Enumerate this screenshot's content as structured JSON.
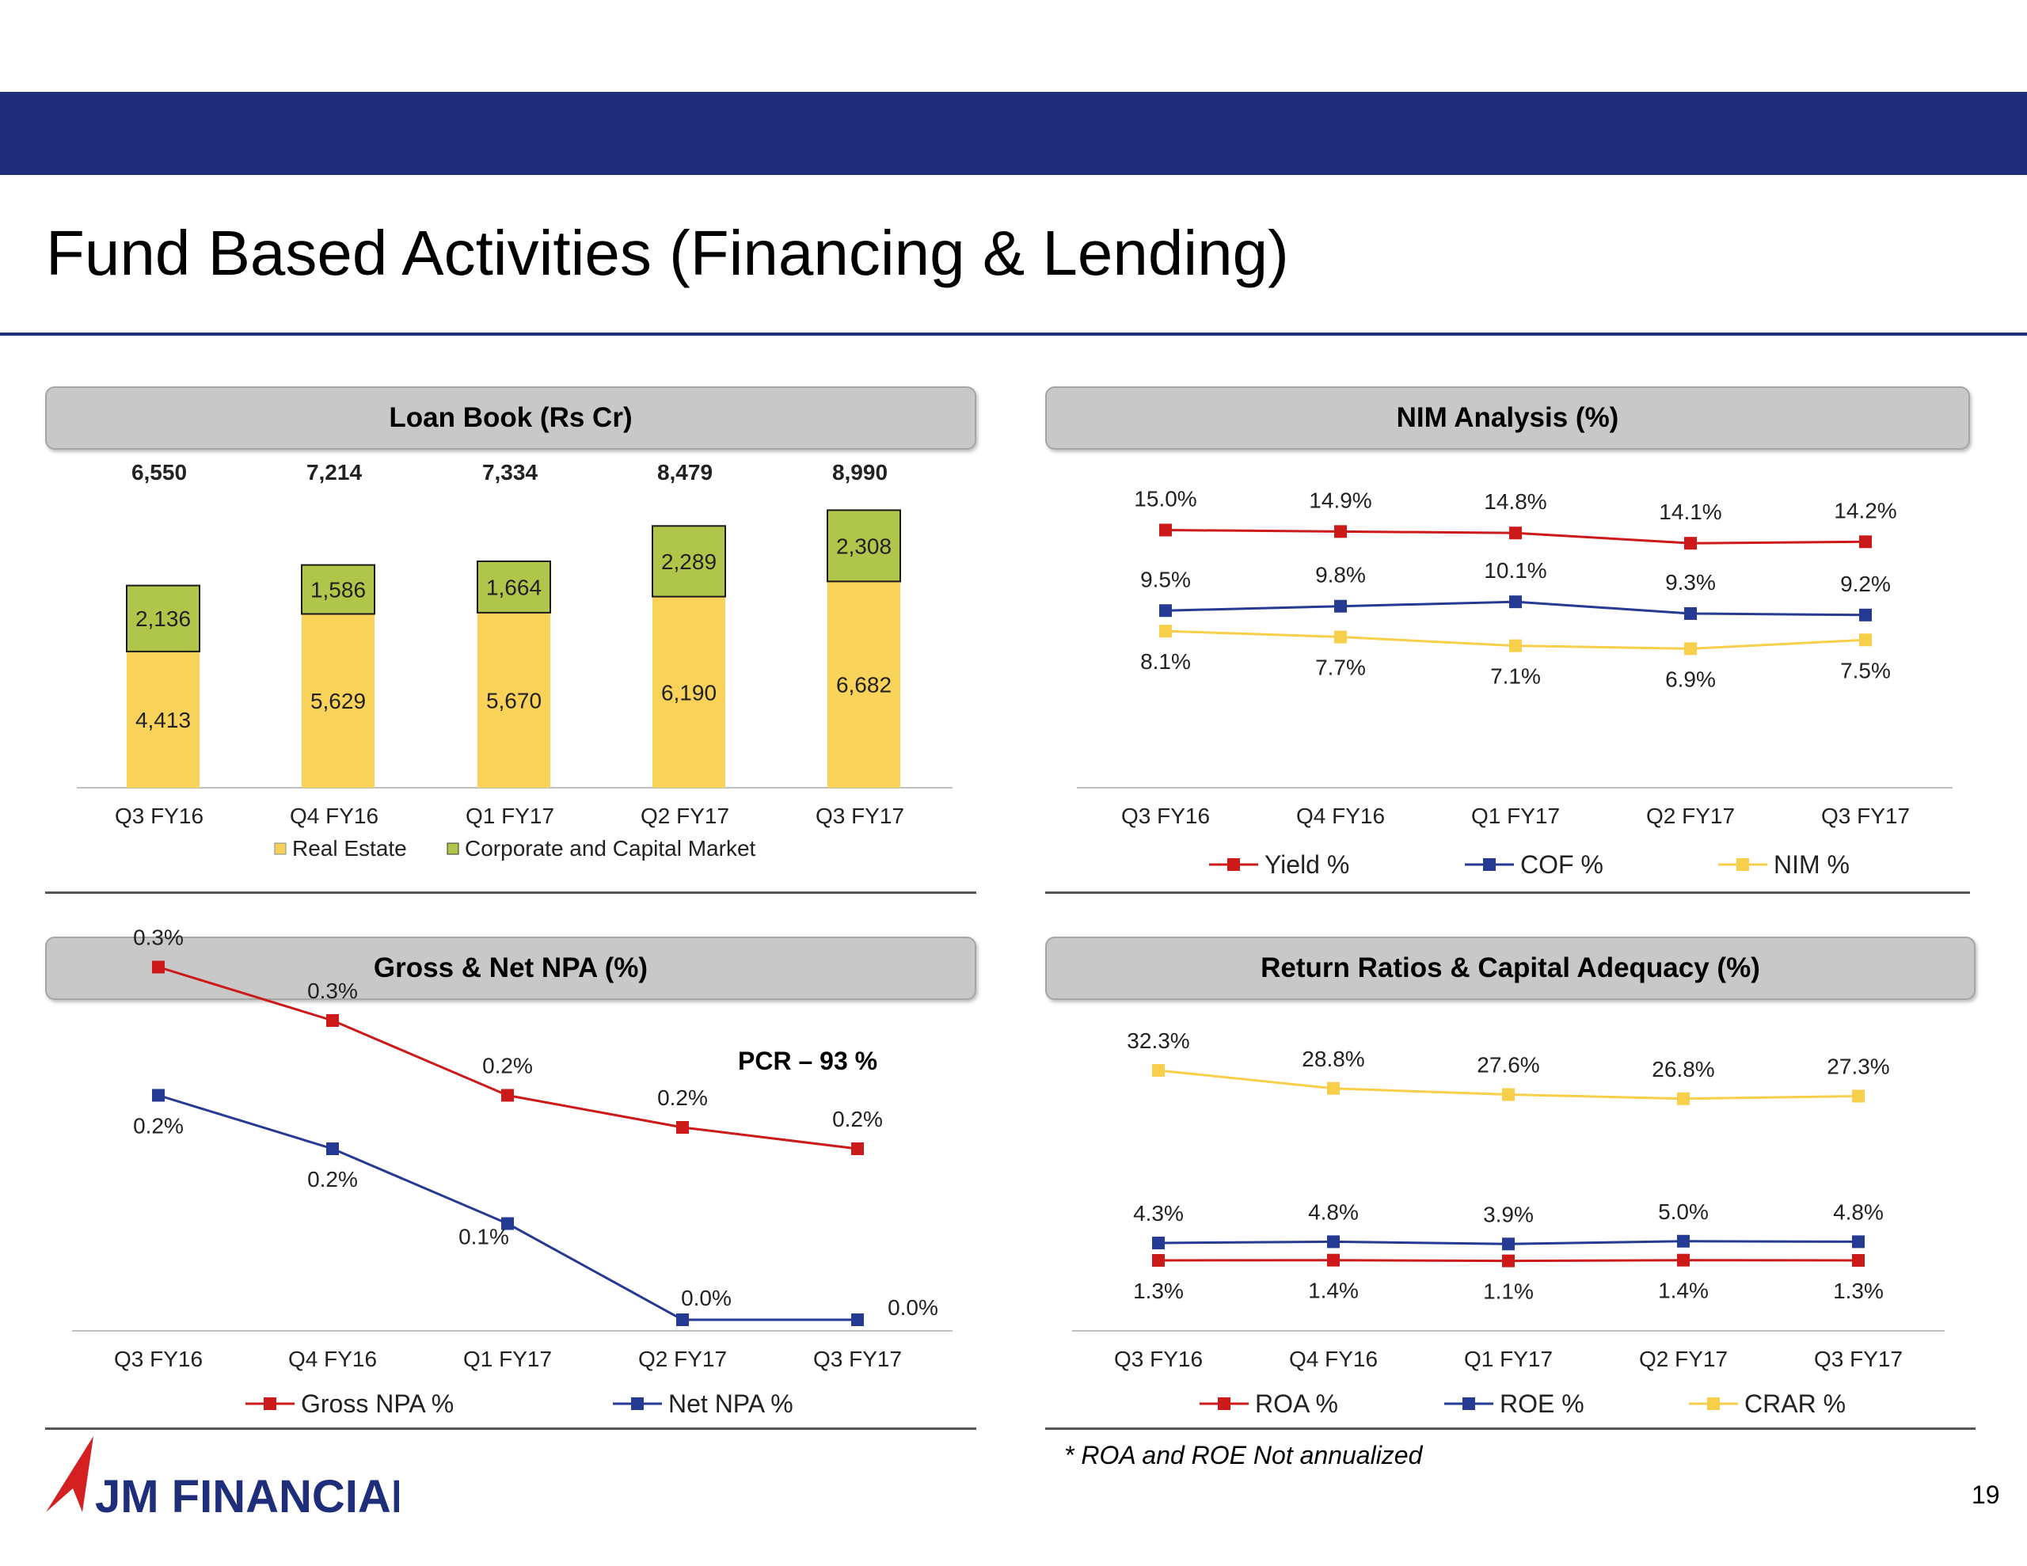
{
  "page": {
    "title": "Fund Based Activities (Financing & Lending)",
    "page_number": "19",
    "footnote": "* ROA and ROE Not annualized",
    "logo_text": "JM FINANCIAL"
  },
  "colors": {
    "navy": "#1f2e7a",
    "red": "#cc1a1a",
    "blue": "#253a93",
    "yellow": "#f7cf4a",
    "bar_yellow": "#f9d25a",
    "bar_green": "#b0c64a"
  },
  "panels": {
    "loan_book": {
      "title": "Loan Book (Rs Cr)"
    },
    "nim": {
      "title": "NIM Analysis (%)"
    },
    "npa": {
      "title": "Gross & Net NPA (%)",
      "note": "PCR – 93 %"
    },
    "returns": {
      "title": "Return Ratios & Capital Adequacy (%)"
    }
  },
  "chart_data": [
    {
      "type": "bar",
      "stacked": true,
      "title": "Loan Book (Rs Cr)",
      "categories": [
        "Q3 FY16",
        "Q4 FY16",
        "Q1 FY17",
        "Q2 FY17",
        "Q3 FY17"
      ],
      "series": [
        {
          "name": "Real Estate",
          "values": [
            4413,
            5629,
            5670,
            6190,
            6682
          ],
          "labels": [
            "4,413",
            "5,629",
            "5,670",
            "6,190",
            "6,682"
          ],
          "color": "#f9d25a"
        },
        {
          "name": "Corporate and Capital Market",
          "values": [
            2136,
            1586,
            1664,
            2289,
            2308
          ],
          "labels": [
            "2,136",
            "1,586",
            "1,664",
            "2,289",
            "2,308"
          ],
          "color": "#b0c64a"
        }
      ],
      "totals": [
        "6,550",
        "7,214",
        "7,334",
        "8,479",
        "8,990"
      ],
      "legend": "bottom",
      "grid": false
    },
    {
      "type": "line",
      "title": "NIM Analysis (%)",
      "categories": [
        "Q3 FY16",
        "Q4 FY16",
        "Q1 FY17",
        "Q2 FY17",
        "Q3 FY17"
      ],
      "series": [
        {
          "name": "Yield %",
          "values": [
            15.0,
            14.9,
            14.8,
            14.1,
            14.2
          ],
          "labels": [
            "15.0%",
            "14.9%",
            "14.8%",
            "14.1%",
            "14.2%"
          ],
          "color": "#cc1a1a"
        },
        {
          "name": "COF %",
          "values": [
            9.5,
            9.8,
            10.1,
            9.3,
            9.2
          ],
          "labels": [
            "9.5%",
            "9.8%",
            "10.1%",
            "9.3%",
            "9.2%"
          ],
          "color": "#253a93"
        },
        {
          "name": "NIM %",
          "values": [
            8.1,
            7.7,
            7.1,
            6.9,
            7.5
          ],
          "labels": [
            "8.1%",
            "7.7%",
            "7.1%",
            "6.9%",
            "7.5%"
          ],
          "color": "#f7cf4a"
        }
      ],
      "legend": "bottom",
      "grid": false
    },
    {
      "type": "line",
      "title": "Gross & Net NPA (%)",
      "categories": [
        "Q3 FY16",
        "Q4 FY16",
        "Q1 FY17",
        "Q2 FY17",
        "Q3 FY17"
      ],
      "series": [
        {
          "name": "Gross NPA %",
          "values": [
            0.33,
            0.28,
            0.21,
            0.18,
            0.16
          ],
          "labels": [
            "0.3%",
            "0.3%",
            "0.2%",
            "0.2%",
            "0.2%"
          ],
          "color": "#cc1a1a"
        },
        {
          "name": "Net NPA %",
          "values": [
            0.21,
            0.16,
            0.09,
            0.0,
            0.0
          ],
          "labels": [
            "0.2%",
            "0.2%",
            "0.1%",
            "0.0%",
            "0.0%"
          ],
          "color": "#253a93"
        }
      ],
      "annotation": "PCR – 93 %",
      "legend": "bottom",
      "grid": false
    },
    {
      "type": "line",
      "title": "Return Ratios & Capital Adequacy (%)",
      "categories": [
        "Q3 FY16",
        "Q4 FY16",
        "Q1 FY17",
        "Q2 FY17",
        "Q3 FY17"
      ],
      "series": [
        {
          "name": "ROA %",
          "values": [
            1.3,
            1.4,
            1.1,
            1.4,
            1.3
          ],
          "labels": [
            "1.3%",
            "1.4%",
            "1.1%",
            "1.4%",
            "1.3%"
          ],
          "color": "#cc1a1a"
        },
        {
          "name": "ROE %",
          "values": [
            4.3,
            4.8,
            3.9,
            5.0,
            4.8
          ],
          "labels": [
            "4.3%",
            "4.8%",
            "3.9%",
            "5.0%",
            "4.8%"
          ],
          "color": "#253a93"
        },
        {
          "name": "CRAR %",
          "values": [
            32.3,
            28.8,
            27.6,
            26.8,
            27.3
          ],
          "labels": [
            "32.3%",
            "28.8%",
            "27.6%",
            "26.8%",
            "27.3%"
          ],
          "color": "#f7cf4a"
        }
      ],
      "legend": "bottom",
      "grid": false
    }
  ]
}
